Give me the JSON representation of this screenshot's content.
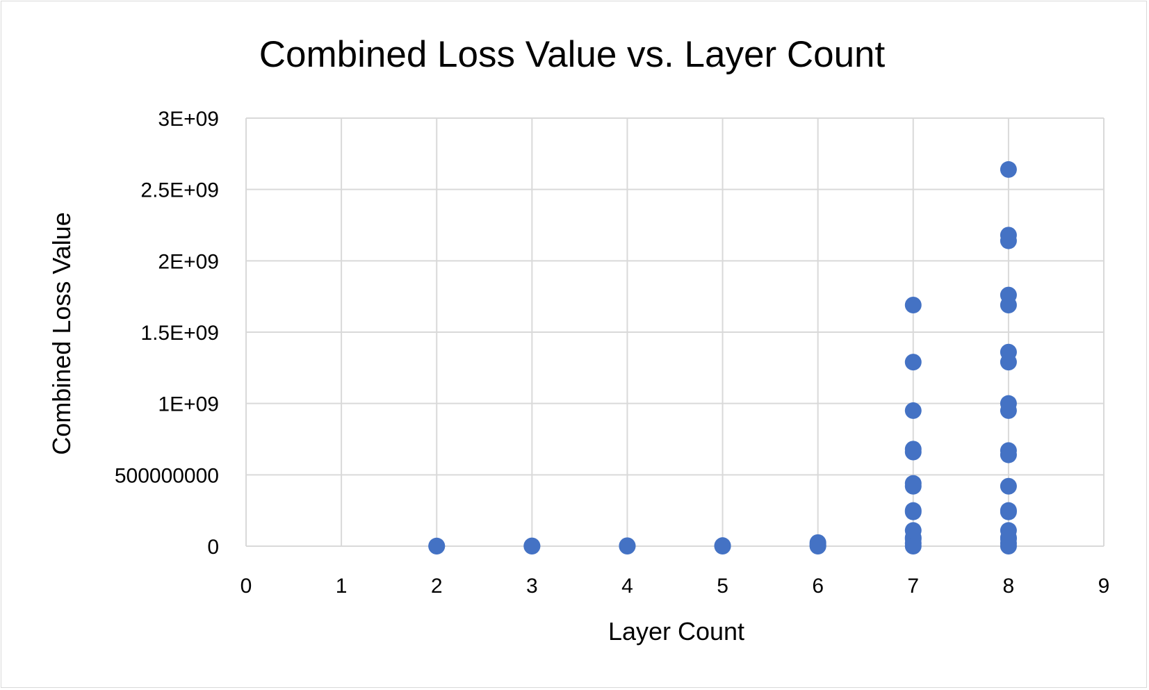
{
  "chart_data": {
    "type": "scatter",
    "title": "Combined Loss Value vs. Layer Count",
    "xlabel": "Layer Count",
    "ylabel": "Combined Loss Value",
    "xlim": [
      0,
      9
    ],
    "ylim": [
      0,
      3000000000
    ],
    "x_ticks": [
      "0",
      "1",
      "2",
      "3",
      "4",
      "5",
      "6",
      "7",
      "8",
      "9"
    ],
    "y_ticks": [
      "0",
      "500000000",
      "1E+09",
      "1.5E+09",
      "2E+09",
      "2.5E+09",
      "3E+09"
    ],
    "grid": true,
    "marker_color": "#4472C4",
    "series": [
      {
        "points": [
          {
            "x": 2,
            "y": 0
          },
          {
            "x": 2,
            "y": 1000000
          },
          {
            "x": 3,
            "y": 0
          },
          {
            "x": 3,
            "y": 2000000
          },
          {
            "x": 4,
            "y": 0
          },
          {
            "x": 4,
            "y": 3000000
          },
          {
            "x": 5,
            "y": 0
          },
          {
            "x": 5,
            "y": 4000000
          },
          {
            "x": 6,
            "y": 0
          },
          {
            "x": 6,
            "y": 5000000
          },
          {
            "x": 6,
            "y": 15000000
          },
          {
            "x": 6,
            "y": 25000000
          },
          {
            "x": 7,
            "y": 0
          },
          {
            "x": 7,
            "y": 20000000
          },
          {
            "x": 7,
            "y": 50000000
          },
          {
            "x": 7,
            "y": 60000000
          },
          {
            "x": 7,
            "y": 110000000
          },
          {
            "x": 7,
            "y": 240000000
          },
          {
            "x": 7,
            "y": 250000000
          },
          {
            "x": 7,
            "y": 420000000
          },
          {
            "x": 7,
            "y": 440000000
          },
          {
            "x": 7,
            "y": 660000000
          },
          {
            "x": 7,
            "y": 680000000
          },
          {
            "x": 7,
            "y": 950000000
          },
          {
            "x": 7,
            "y": 1290000000
          },
          {
            "x": 7,
            "y": 1690000000
          },
          {
            "x": 8,
            "y": 0
          },
          {
            "x": 8,
            "y": 20000000
          },
          {
            "x": 8,
            "y": 50000000
          },
          {
            "x": 8,
            "y": 60000000
          },
          {
            "x": 8,
            "y": 110000000
          },
          {
            "x": 8,
            "y": 240000000
          },
          {
            "x": 8,
            "y": 250000000
          },
          {
            "x": 8,
            "y": 420000000
          },
          {
            "x": 8,
            "y": 640000000
          },
          {
            "x": 8,
            "y": 670000000
          },
          {
            "x": 8,
            "y": 950000000
          },
          {
            "x": 8,
            "y": 1000000000
          },
          {
            "x": 8,
            "y": 1290000000
          },
          {
            "x": 8,
            "y": 1360000000
          },
          {
            "x": 8,
            "y": 1690000000
          },
          {
            "x": 8,
            "y": 1760000000
          },
          {
            "x": 8,
            "y": 2140000000
          },
          {
            "x": 8,
            "y": 2180000000
          },
          {
            "x": 8,
            "y": 2640000000
          }
        ]
      }
    ]
  }
}
